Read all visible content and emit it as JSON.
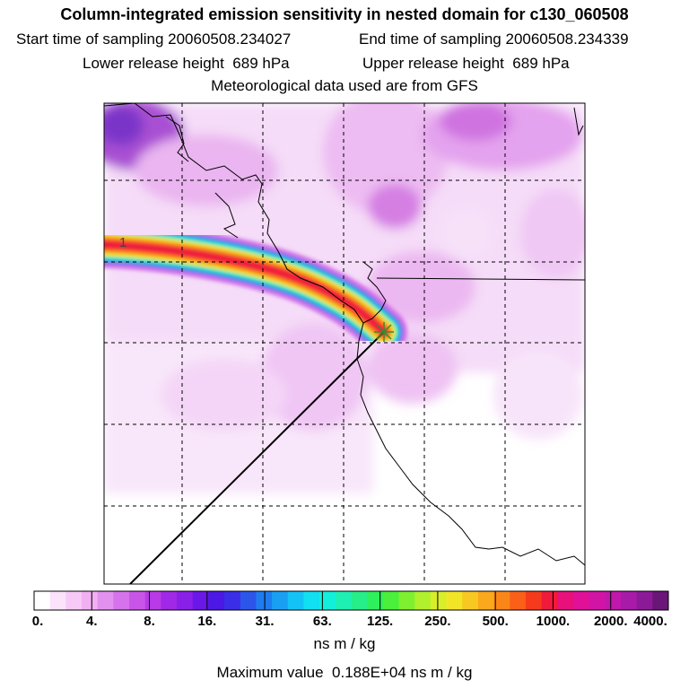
{
  "header": {
    "title": "Column-integrated emission sensitivity in nested domain for c130_060508",
    "start_label": "Start time of sampling",
    "start_value": "20060508.234027",
    "end_label": "End time of sampling",
    "end_value": "20060508.234339",
    "lower_label": "Lower release height",
    "lower_value": "689 hPa",
    "upper_label": "Upper release height",
    "upper_value": "689 hPa",
    "met_note": "Meteorological data used are from GFS"
  },
  "map": {
    "plume_label": "1",
    "colors": {
      "background_tint": "#f3d6f7",
      "tint_strong": "#e7a8ef",
      "tint_deep": "#c86ad8",
      "coast": "#000000",
      "grid": "#000000",
      "release_marker": "#4caf50"
    }
  },
  "legend": {
    "tick_labels": [
      "0.",
      "4.",
      "8.",
      "16.",
      "31.",
      "63.",
      "125.",
      "250.",
      "500.",
      "1000.",
      "2000.",
      "4000."
    ],
    "colors": [
      "#ffffff",
      "#fbe3fb",
      "#f7c9f7",
      "#f2b0f2",
      "#e391ef",
      "#d673ec",
      "#c955e8",
      "#b93ae6",
      "#a028e6",
      "#8a1fe8",
      "#6a18e8",
      "#4b18e6",
      "#3a2ee6",
      "#2c55ea",
      "#1e7cef",
      "#1aa0f3",
      "#14c3f5",
      "#10e0f2",
      "#12f0dc",
      "#1ef0b4",
      "#26ee88",
      "#2ef05c",
      "#4af03c",
      "#7df030",
      "#b0f02c",
      "#d8ee2a",
      "#f2e528",
      "#f8c822",
      "#fba81d",
      "#fb8618",
      "#fa6018",
      "#f63a1c",
      "#f01a3a",
      "#e8107a",
      "#e01098",
      "#d214a6",
      "#c018ac",
      "#a81aa8",
      "#8c1a98",
      "#6a1678"
    ],
    "unit": "ns m / kg",
    "max_label": "Maximum value",
    "max_value": "0.188E+04",
    "max_unit": "ns m / kg"
  }
}
